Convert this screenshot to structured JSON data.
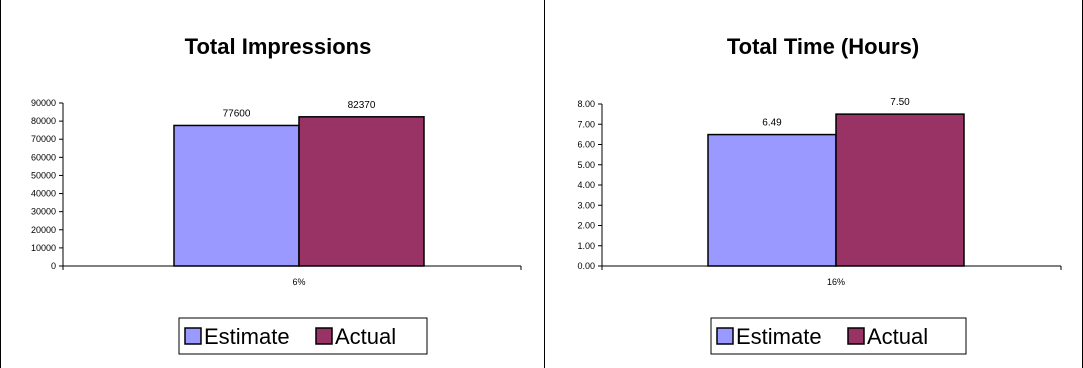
{
  "colors": {
    "estimate": "#9999ff",
    "actual": "#993366",
    "axis": "#000000"
  },
  "chart_data": [
    {
      "type": "bar",
      "title": "Total Impressions",
      "categories": [
        "6%"
      ],
      "series": [
        {
          "name": "Estimate",
          "values": [
            77600
          ],
          "labels": [
            "77600"
          ]
        },
        {
          "name": "Actual",
          "values": [
            82370
          ],
          "labels": [
            "82370"
          ]
        }
      ],
      "ylim": [
        0,
        90000
      ],
      "yticks": [
        "0",
        "10000",
        "20000",
        "30000",
        "40000",
        "50000",
        "60000",
        "70000",
        "80000",
        "90000"
      ],
      "xlabel": "",
      "ylabel": "",
      "grid": false,
      "legend": "bottom"
    },
    {
      "type": "bar",
      "title": "Total Time (Hours)",
      "categories": [
        "16%"
      ],
      "series": [
        {
          "name": "Estimate",
          "values": [
            6.49
          ],
          "labels": [
            "6.49"
          ]
        },
        {
          "name": "Actual",
          "values": [
            7.5
          ],
          "labels": [
            "7.50"
          ]
        }
      ],
      "ylim": [
        0,
        8
      ],
      "yticks": [
        "0.00",
        "1.00",
        "2.00",
        "3.00",
        "4.00",
        "5.00",
        "6.00",
        "7.00",
        "8.00"
      ],
      "xlabel": "",
      "ylabel": "",
      "grid": false,
      "legend": "bottom"
    }
  ]
}
